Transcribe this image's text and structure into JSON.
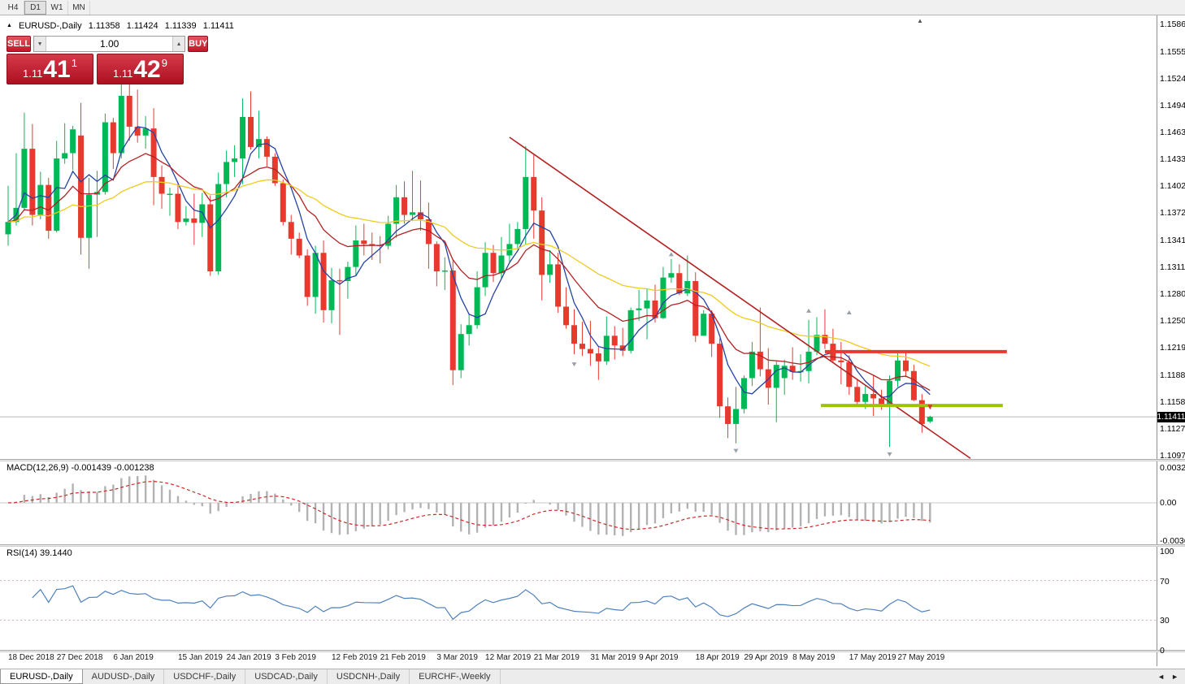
{
  "toolbar": {
    "timeframes": [
      "H4",
      "D1",
      "W1",
      "MN"
    ]
  },
  "chart_header": {
    "symbol": "EURUSD-,Daily",
    "open": "1.11358",
    "high": "1.11424",
    "low": "1.11339",
    "close": "1.11411"
  },
  "trade_panel": {
    "sell_label": "SELL",
    "buy_label": "BUY",
    "volume": "1.00",
    "sell_price": {
      "small": "1.11",
      "big": "41",
      "sup": "1"
    },
    "buy_price": {
      "small": "1.11",
      "big": "42",
      "sup": "9"
    }
  },
  "price_axis": {
    "labels": [
      "1.15860",
      "1.15550",
      "1.15245",
      "1.14940",
      "1.14635",
      "1.14330",
      "1.14025",
      "1.13720",
      "1.13415",
      "1.13110",
      "1.12805",
      "1.12500",
      "1.12195",
      "1.11885",
      "1.11580",
      "1.11275",
      "1.10970"
    ],
    "current": "1.11411"
  },
  "macd": {
    "header": "MACD(12,26,9) -0.001439 -0.001238",
    "axis": [
      "0.00328",
      "0.00",
      "-0.00365"
    ]
  },
  "rsi": {
    "header": "RSI(14) 39.1440",
    "axis": [
      "100",
      "70",
      "30",
      "0"
    ]
  },
  "date_axis": [
    {
      "t": "18 Dec 2018",
      "i": 0
    },
    {
      "t": "27 Dec 2018",
      "i": 6
    },
    {
      "t": "6 Jan 2019",
      "i": 13
    },
    {
      "t": "15 Jan 2019",
      "i": 21
    },
    {
      "t": "24 Jan 2019",
      "i": 27
    },
    {
      "t": "3 Feb 2019",
      "i": 33
    },
    {
      "t": "12 Feb 2019",
      "i": 40
    },
    {
      "t": "21 Feb 2019",
      "i": 46
    },
    {
      "t": "3 Mar 2019",
      "i": 53
    },
    {
      "t": "12 Mar 2019",
      "i": 59
    },
    {
      "t": "21 Mar 2019",
      "i": 65
    },
    {
      "t": "31 Mar 2019",
      "i": 72
    },
    {
      "t": "9 Apr 2019",
      "i": 78
    },
    {
      "t": "18 Apr 2019",
      "i": 85
    },
    {
      "t": "29 Apr 2019",
      "i": 91
    },
    {
      "t": "8 May 2019",
      "i": 97
    },
    {
      "t": "17 May 2019",
      "i": 104
    },
    {
      "t": "27 May 2019",
      "i": 110
    }
  ],
  "tabs": {
    "items": [
      "EURUSD-,Daily",
      "AUDUSD-,Daily",
      "USDCHF-,Daily",
      "USDCAD-,Daily",
      "USDCNH-,Daily",
      "EURCHF-,Weekly"
    ],
    "active_index": 0
  },
  "colors": {
    "bull": "#00B956",
    "bear": "#E8392F",
    "ma_fast": "#2642A5",
    "ma_mid": "#B22222",
    "ma_slow": "#EFCB1E",
    "trendline": "#B22222",
    "resistance": "#E8392F",
    "support": "#9DC209",
    "macd_hist": "#b2b2b2",
    "macd_signal": "#CC2A2A",
    "rsi_line": "#4F81BD",
    "current_price_line": "#b8b8b8"
  },
  "chart_data": {
    "type": "candlestick",
    "title": "EURUSD Daily",
    "price_axis_top": 1.1586,
    "current_price": 1.11411,
    "candles": [
      [
        1.1348,
        1.1403,
        1.1335,
        1.1362
      ],
      [
        1.1362,
        1.144,
        1.1358,
        1.1378
      ],
      [
        1.1378,
        1.1486,
        1.1375,
        1.1445
      ],
      [
        1.1445,
        1.1473,
        1.1358,
        1.137
      ],
      [
        1.137,
        1.1419,
        1.1365,
        1.1404
      ],
      [
        1.1404,
        1.1412,
        1.1343,
        1.1352
      ],
      [
        1.1352,
        1.1454,
        1.135,
        1.1434
      ],
      [
        1.1434,
        1.1474,
        1.1428,
        1.144
      ],
      [
        1.144,
        1.1471,
        1.1421,
        1.1467
      ],
      [
        1.146,
        1.1497,
        1.1325,
        1.1344
      ],
      [
        1.1344,
        1.1412,
        1.1309,
        1.1393
      ],
      [
        1.1393,
        1.142,
        1.1345,
        1.1396
      ],
      [
        1.1396,
        1.1485,
        1.1393,
        1.1475
      ],
      [
        1.1475,
        1.148,
        1.1422,
        1.144
      ],
      [
        1.144,
        1.152,
        1.1434,
        1.1505
      ],
      [
        1.1505,
        1.1528,
        1.1454,
        1.147
      ],
      [
        1.147,
        1.1512,
        1.1452,
        1.146
      ],
      [
        1.146,
        1.1482,
        1.1445,
        1.1468
      ],
      [
        1.1468,
        1.1491,
        1.1381,
        1.1413
      ],
      [
        1.1413,
        1.1426,
        1.1377,
        1.1394
      ],
      [
        1.1394,
        1.1401,
        1.1369,
        1.1394
      ],
      [
        1.1394,
        1.1407,
        1.1354,
        1.1362
      ],
      [
        1.1362,
        1.138,
        1.1358,
        1.1366
      ],
      [
        1.1366,
        1.1394,
        1.1336,
        1.1361
      ],
      [
        1.1361,
        1.1395,
        1.1345,
        1.1382
      ],
      [
        1.1382,
        1.1392,
        1.1301,
        1.1306
      ],
      [
        1.1306,
        1.1418,
        1.1302,
        1.1405
      ],
      [
        1.1405,
        1.1443,
        1.139,
        1.143
      ],
      [
        1.143,
        1.1449,
        1.1413,
        1.1434
      ],
      [
        1.1434,
        1.1502,
        1.1405,
        1.1481
      ],
      [
        1.1481,
        1.151,
        1.1444,
        1.1447
      ],
      [
        1.1447,
        1.1488,
        1.1434,
        1.1456
      ],
      [
        1.1456,
        1.1459,
        1.1425,
        1.1436
      ],
      [
        1.1436,
        1.144,
        1.1403,
        1.1406
      ],
      [
        1.1406,
        1.141,
        1.1358,
        1.1362
      ],
      [
        1.1362,
        1.137,
        1.1325,
        1.1343
      ],
      [
        1.1343,
        1.135,
        1.1321,
        1.1324
      ],
      [
        1.1324,
        1.1331,
        1.1267,
        1.1277
      ],
      [
        1.1277,
        1.1335,
        1.1258,
        1.1327
      ],
      [
        1.1327,
        1.1341,
        1.1248,
        1.1262
      ],
      [
        1.1262,
        1.131,
        1.1247,
        1.1296
      ],
      [
        1.1296,
        1.1309,
        1.1234,
        1.1295
      ],
      [
        1.1295,
        1.1317,
        1.1275,
        1.1311
      ],
      [
        1.1311,
        1.1358,
        1.1301,
        1.1341
      ],
      [
        1.1341,
        1.136,
        1.1324,
        1.1337
      ],
      [
        1.1337,
        1.135,
        1.1319,
        1.1336
      ],
      [
        1.1336,
        1.1346,
        1.1315,
        1.1335
      ],
      [
        1.1335,
        1.1369,
        1.1331,
        1.136
      ],
      [
        1.136,
        1.1404,
        1.1344,
        1.139
      ],
      [
        1.139,
        1.1408,
        1.136,
        1.137
      ],
      [
        1.137,
        1.142,
        1.1363,
        1.1373
      ],
      [
        1.1373,
        1.1409,
        1.1352,
        1.1365
      ],
      [
        1.1365,
        1.1384,
        1.1309,
        1.1337
      ],
      [
        1.1337,
        1.134,
        1.1289,
        1.1306
      ],
      [
        1.1306,
        1.1322,
        1.1285,
        1.1307
      ],
      [
        1.1307,
        1.132,
        1.1177,
        1.1194
      ],
      [
        1.1194,
        1.1246,
        1.1185,
        1.1235
      ],
      [
        1.1235,
        1.1258,
        1.1222,
        1.1245
      ],
      [
        1.1245,
        1.1306,
        1.1241,
        1.1288
      ],
      [
        1.1288,
        1.1339,
        1.1278,
        1.1327
      ],
      [
        1.1327,
        1.1336,
        1.1294,
        1.1304
      ],
      [
        1.1304,
        1.1345,
        1.1298,
        1.1324
      ],
      [
        1.1324,
        1.136,
        1.1317,
        1.1337
      ],
      [
        1.1337,
        1.1362,
        1.1332,
        1.1354
      ],
      [
        1.1354,
        1.1448,
        1.1336,
        1.1413
      ],
      [
        1.1413,
        1.1438,
        1.1343,
        1.1375
      ],
      [
        1.1375,
        1.139,
        1.1273,
        1.1302
      ],
      [
        1.1302,
        1.133,
        1.1293,
        1.1314
      ],
      [
        1.1314,
        1.1327,
        1.1259,
        1.1266
      ],
      [
        1.1266,
        1.1288,
        1.1241,
        1.1245
      ],
      [
        1.1245,
        1.1263,
        1.1212,
        1.1224
      ],
      [
        1.1224,
        1.1249,
        1.121,
        1.1218
      ],
      [
        1.1218,
        1.125,
        1.1199,
        1.1213
      ],
      [
        1.1213,
        1.122,
        1.1183,
        1.1204
      ],
      [
        1.1204,
        1.1255,
        1.12,
        1.1233
      ],
      [
        1.1233,
        1.1244,
        1.1206,
        1.1222
      ],
      [
        1.1222,
        1.1242,
        1.121,
        1.1216
      ],
      [
        1.1216,
        1.1265,
        1.1213,
        1.1262
      ],
      [
        1.1262,
        1.1285,
        1.125,
        1.1264
      ],
      [
        1.1264,
        1.1287,
        1.1229,
        1.1273
      ],
      [
        1.1273,
        1.1291,
        1.1248,
        1.1253
      ],
      [
        1.1253,
        1.1311,
        1.1252,
        1.1299
      ],
      [
        1.1299,
        1.132,
        1.1293,
        1.1304
      ],
      [
        1.1304,
        1.1314,
        1.1279,
        1.1281
      ],
      [
        1.1281,
        1.1324,
        1.1278,
        1.1295
      ],
      [
        1.1295,
        1.1305,
        1.1226,
        1.1233
      ],
      [
        1.1233,
        1.1262,
        1.1233,
        1.1258
      ],
      [
        1.1258,
        1.1262,
        1.1209,
        1.1224
      ],
      [
        1.1224,
        1.123,
        1.114,
        1.1153
      ],
      [
        1.1153,
        1.1163,
        1.1117,
        1.1133
      ],
      [
        1.1133,
        1.1175,
        1.1111,
        1.115
      ],
      [
        1.115,
        1.1188,
        1.1145,
        1.1185
      ],
      [
        1.1185,
        1.1226,
        1.1176,
        1.1215
      ],
      [
        1.1215,
        1.1265,
        1.1187,
        1.1195
      ],
      [
        1.1195,
        1.1219,
        1.1155,
        1.1174
      ],
      [
        1.1174,
        1.1205,
        1.1135,
        1.12
      ],
      [
        1.1185,
        1.1206,
        1.1166,
        1.1199
      ],
      [
        1.1199,
        1.122,
        1.1183,
        1.1192
      ],
      [
        1.1192,
        1.1212,
        1.1181,
        1.1193
      ],
      [
        1.1193,
        1.1251,
        1.1179,
        1.1215
      ],
      [
        1.1215,
        1.1254,
        1.1211,
        1.1234
      ],
      [
        1.1234,
        1.1263,
        1.1218,
        1.1224
      ],
      [
        1.1224,
        1.1241,
        1.1202,
        1.1205
      ],
      [
        1.1205,
        1.1226,
        1.1178,
        1.1203
      ],
      [
        1.1203,
        1.1211,
        1.1166,
        1.1175
      ],
      [
        1.1175,
        1.1184,
        1.1155,
        1.1158
      ],
      [
        1.1158,
        1.1176,
        1.115,
        1.1167
      ],
      [
        1.1167,
        1.1188,
        1.1142,
        1.1162
      ],
      [
        1.1162,
        1.1172,
        1.1149,
        1.1153
      ],
      [
        1.1153,
        1.1188,
        1.1107,
        1.1182
      ],
      [
        1.1182,
        1.1213,
        1.1175,
        1.1205
      ],
      [
        1.1205,
        1.1215,
        1.1186,
        1.1193
      ],
      [
        1.1193,
        1.12,
        1.1159,
        1.116
      ],
      [
        1.116,
        1.1167,
        1.1123,
        1.1133
      ],
      [
        1.11358,
        1.11424,
        1.11339,
        1.11411
      ]
    ],
    "overlays": {
      "moving_averages": [
        {
          "period": 5,
          "method": "sma",
          "color": "#2642A5"
        },
        {
          "period": 13,
          "method": "ema",
          "color": "#B22222"
        },
        {
          "period": 34,
          "method": "ema",
          "color": "#EFCB1E"
        }
      ],
      "trendline": {
        "i1": 62,
        "p1": 1.1458,
        "i2": 119,
        "p2": 1.1094,
        "color": "#B22222"
      },
      "resistance_line": {
        "p": 1.1215,
        "i1": 101,
        "i2": 123.5,
        "color": "#E8392F",
        "width": 4
      },
      "support_line": {
        "p": 1.1154,
        "i1": 100.5,
        "i2": 123,
        "color": "#9DC209",
        "width": 4
      },
      "markers": [
        {
          "i": 70,
          "p": 1.12,
          "d": "down"
        },
        {
          "i": 82,
          "p": 1.1326,
          "d": "up"
        },
        {
          "i": 90,
          "p": 1.1102,
          "d": "down"
        },
        {
          "i": 99,
          "p": 1.1262,
          "d": "up"
        },
        {
          "i": 104,
          "p": 1.126,
          "d": "up"
        },
        {
          "i": 109,
          "p": 1.1098,
          "d": "down"
        },
        {
          "i": 114,
          "p": 1.1152,
          "d": "sell"
        }
      ]
    },
    "indicators": {
      "macd": {
        "fast": 12,
        "slow": 26,
        "signal": 9,
        "value": -0.001439,
        "signal_value": -0.001238
      },
      "rsi": {
        "period": 14,
        "value": 39.144,
        "levels": [
          70,
          30
        ]
      }
    }
  }
}
